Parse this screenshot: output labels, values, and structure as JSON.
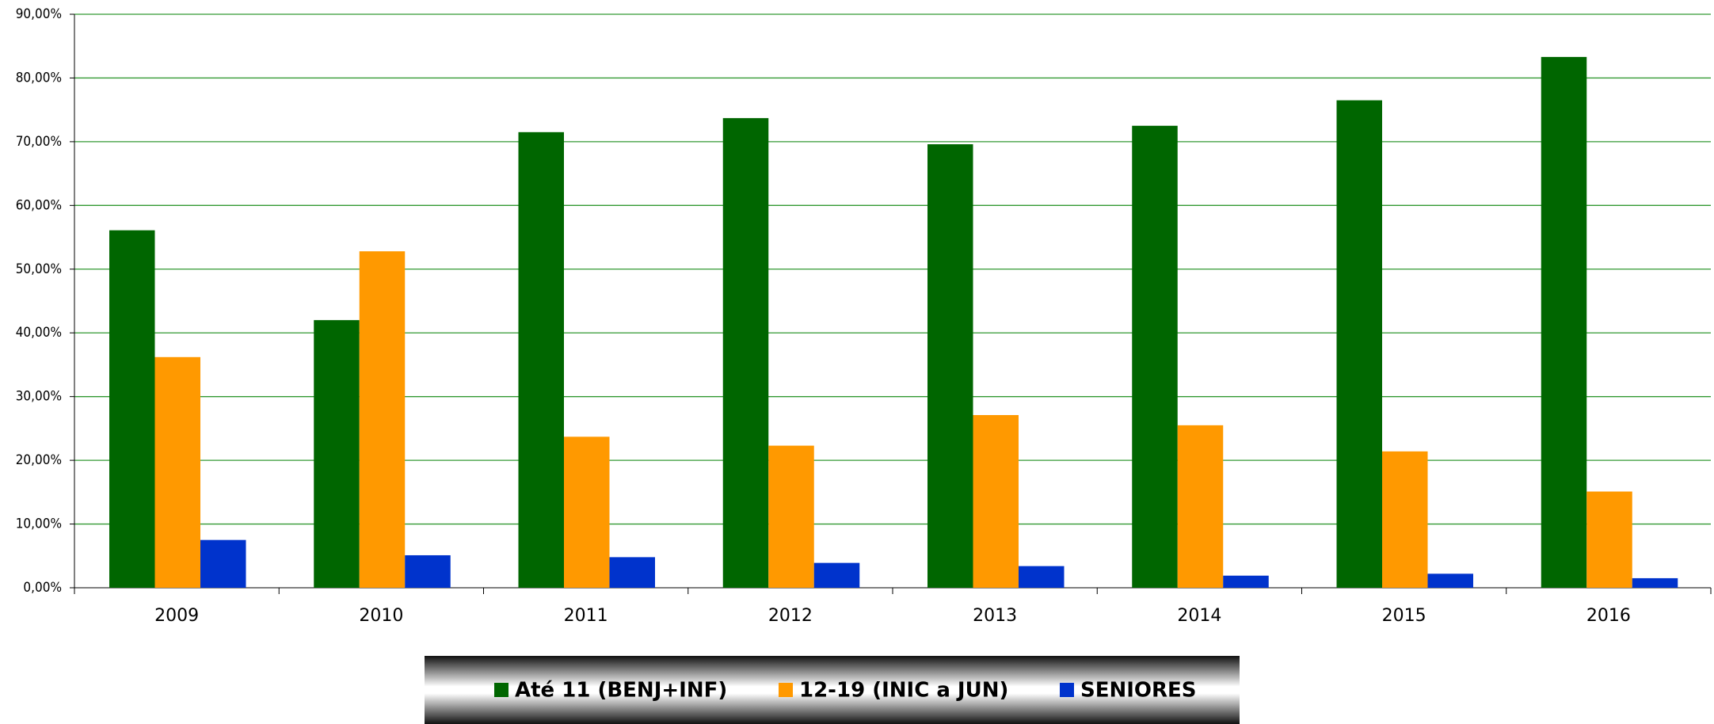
{
  "chart_data": {
    "type": "bar",
    "categories": [
      "2009",
      "2010",
      "2011",
      "2012",
      "2013",
      "2014",
      "2015",
      "2016"
    ],
    "series": [
      {
        "name": "Até 11 (BENJ+INF)",
        "color": "#006600",
        "values": [
          56.1,
          42.0,
          71.5,
          73.7,
          69.6,
          72.5,
          76.5,
          83.3
        ]
      },
      {
        "name": "12-19 (INIC a JUN)",
        "color": "#ff9900",
        "values": [
          36.2,
          52.8,
          23.7,
          22.3,
          27.1,
          25.5,
          21.4,
          15.1
        ]
      },
      {
        "name": "SENIORES",
        "color": "#0033cc",
        "values": [
          7.5,
          5.1,
          4.8,
          3.9,
          3.4,
          1.9,
          2.2,
          1.5
        ]
      }
    ],
    "ylim": [
      0,
      90
    ],
    "yticks": [
      {
        "value": 0,
        "label": "0,00%"
      },
      {
        "value": 10,
        "label": "10,00%"
      },
      {
        "value": 20,
        "label": "20,00%"
      },
      {
        "value": 30,
        "label": "30,00%"
      },
      {
        "value": 40,
        "label": "40,00%"
      },
      {
        "value": 50,
        "label": "50,00%"
      },
      {
        "value": 60,
        "label": "60,00%"
      },
      {
        "value": 70,
        "label": "70,00%"
      },
      {
        "value": 80,
        "label": "80,00%"
      },
      {
        "value": 90,
        "label": "90,00%"
      }
    ],
    "grid": true,
    "grid_color": "#339933",
    "legend": "bottom"
  }
}
